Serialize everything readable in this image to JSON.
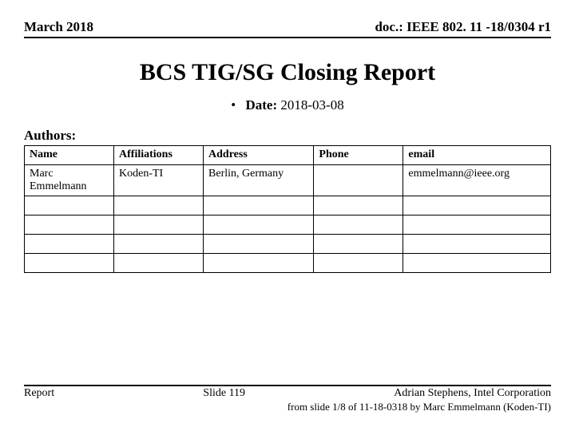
{
  "header": {
    "left": "March 2018",
    "right": "doc.: IEEE 802. 11 -18/0304 r1"
  },
  "title": "BCS TIG/SG Closing Report",
  "date": {
    "label": "Date:",
    "value": "2018-03-08"
  },
  "authors_label": "Authors:",
  "authors_table": {
    "columns": [
      "Name",
      "Affiliations",
      "Address",
      "Phone",
      "email"
    ],
    "column_widths_pct": [
      17,
      17,
      21,
      17,
      28
    ],
    "rows": [
      [
        "Marc Emmelmann",
        "Koden-TI",
        "Berlin, Germany",
        "",
        "emmelmann@ieee.org"
      ],
      [
        "",
        "",
        "",
        "",
        ""
      ],
      [
        "",
        "",
        "",
        "",
        ""
      ],
      [
        "",
        "",
        "",
        "",
        ""
      ],
      [
        "",
        "",
        "",
        "",
        ""
      ]
    ],
    "header_fontweight": "bold",
    "border_color": "#000000",
    "font_size_pt": 11
  },
  "footer": {
    "left": "Report",
    "center": "Slide 119",
    "right": "Adrian Stephens, Intel Corporation",
    "sub": "from slide 1/8 of 11-18-0318 by Marc Emmelmann (Koden-TI)"
  },
  "colors": {
    "text": "#000000",
    "background": "#ffffff",
    "rule": "#000000"
  },
  "typography": {
    "font_family": "Times New Roman",
    "title_size_pt": 23,
    "header_size_pt": 13,
    "body_size_pt": 13,
    "footer_size_pt": 11
  }
}
